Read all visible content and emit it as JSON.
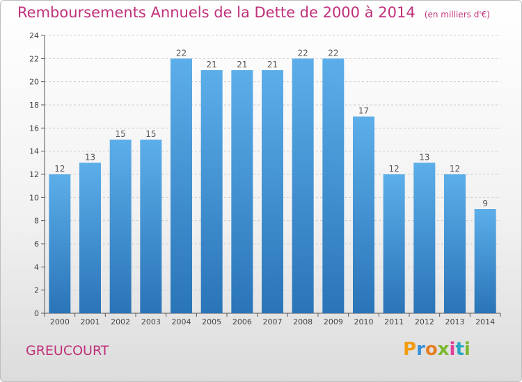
{
  "title": "Remboursements Annuels de la Dette de 2000 à 2014",
  "subtitle": "(en milliers d'€)",
  "location": "GREUCOURT",
  "logo_text": "Proxiti",
  "colors": {
    "title": "#c0307a",
    "bar_top": "#5caee9",
    "bar_bottom": "#2a74b8",
    "axis": "#555555",
    "grid": "#cccccc"
  },
  "chart_data": {
    "type": "bar",
    "title": "Remboursements Annuels de la Dette de 2000 à 2014",
    "subtitle": "(en milliers d'€)",
    "xlabel": "",
    "ylabel": "",
    "ylim": [
      0,
      24
    ],
    "yticks": [
      0,
      2,
      4,
      6,
      8,
      10,
      12,
      14,
      16,
      18,
      20,
      22,
      24
    ],
    "grid": true,
    "categories": [
      "2000",
      "2001",
      "2002",
      "2003",
      "2004",
      "2005",
      "2006",
      "2007",
      "2008",
      "2009",
      "2010",
      "2011",
      "2012",
      "2013",
      "2014"
    ],
    "values": [
      12,
      13,
      15,
      15,
      22,
      21,
      21,
      21,
      22,
      22,
      17,
      12,
      13,
      12,
      9
    ]
  }
}
